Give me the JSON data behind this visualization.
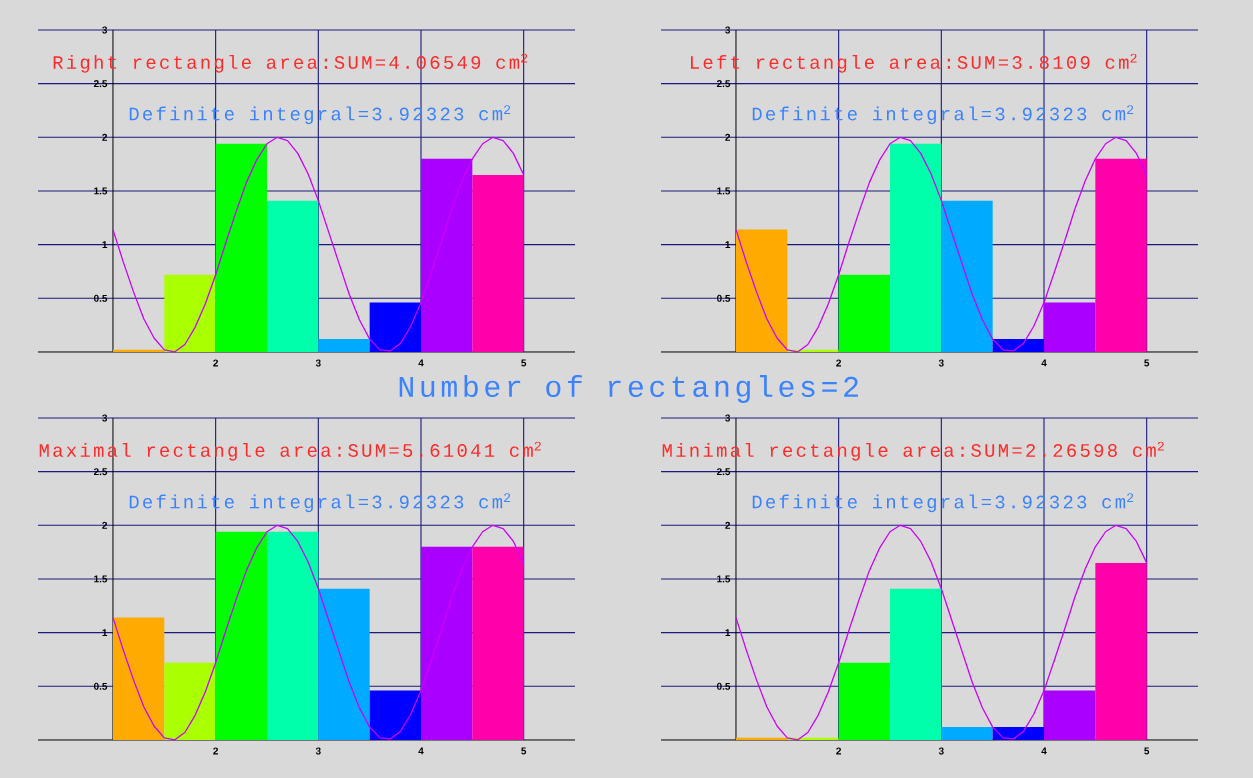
{
  "chart_data": [
    {
      "type": "bar",
      "title": "Right rectangle area:SUM=4.06549 cm$^{2}$",
      "subtitle": "Definite integral=3.92323 cm$^{2}$",
      "annotations": [
        "Number of rectangles=2"
      ],
      "x": [
        1.25,
        1.75,
        2.25,
        2.75,
        3.25,
        3.75,
        4.25,
        4.75
      ],
      "series": [
        {
          "values": [
            0.02,
            0.72,
            1.94,
            1.41,
            0.12,
            0.46,
            1.8,
            1.65
          ],
          "colors": [
            "#ffaa00",
            "#aaff00",
            "#00ff00",
            "#00ffaa",
            "#00aaff",
            "#0000ff",
            "#aa00ff",
            "#ff00aa"
          ]
        },
        {
          "type": "line",
          "color": "#cc00ff",
          "x": [
            1.0,
            1.1,
            1.2,
            1.3,
            1.4,
            1.5,
            1.6,
            1.7,
            1.8,
            1.9,
            2.0,
            2.1,
            2.2,
            2.3,
            2.4,
            2.5,
            2.6,
            2.7,
            2.8,
            2.9,
            3.0,
            3.1,
            3.2,
            3.3,
            3.4,
            3.5,
            3.6,
            3.7,
            3.8,
            3.9,
            4.0,
            4.1,
            4.2,
            4.3,
            4.4,
            4.5,
            4.6,
            4.7,
            4.8,
            4.9,
            5.0
          ],
          "values": [
            1.14,
            0.84,
            0.56,
            0.31,
            0.13,
            0.02,
            0.0,
            0.07,
            0.23,
            0.45,
            0.72,
            1.02,
            1.31,
            1.58,
            1.79,
            1.94,
            2.0,
            1.97,
            1.85,
            1.66,
            1.41,
            1.12,
            0.83,
            0.54,
            0.3,
            0.12,
            0.02,
            0.01,
            0.08,
            0.24,
            0.46,
            0.74,
            1.03,
            1.33,
            1.59,
            1.8,
            1.94,
            2.0,
            1.97,
            1.85,
            1.65
          ]
        }
      ],
      "xlim": [
        0.27,
        5.5
      ],
      "ylim": [
        0,
        3
      ],
      "xticks": [
        2,
        3,
        4,
        5
      ],
      "yticks": [
        0.5,
        1,
        1.5,
        2,
        2.5,
        3
      ],
      "grid": true
    },
    {
      "type": "bar",
      "title": "Left rectangle area:SUM=3.8109 cm$^{2}$",
      "subtitle": "Definite integral=3.92323 cm$^{2}$",
      "x": [
        1.25,
        1.75,
        2.25,
        2.75,
        3.25,
        3.75,
        4.25,
        4.75
      ],
      "series": [
        {
          "values": [
            1.14,
            0.02,
            0.72,
            1.94,
            1.41,
            0.12,
            0.46,
            1.8
          ],
          "colors": [
            "#ffaa00",
            "#aaff00",
            "#00ff00",
            "#00ffaa",
            "#00aaff",
            "#0000ff",
            "#aa00ff",
            "#ff00aa"
          ]
        },
        {
          "type": "line",
          "color": "#cc00ff",
          "x": [
            1.0,
            1.1,
            1.2,
            1.3,
            1.4,
            1.5,
            1.6,
            1.7,
            1.8,
            1.9,
            2.0,
            2.1,
            2.2,
            2.3,
            2.4,
            2.5,
            2.6,
            2.7,
            2.8,
            2.9,
            3.0,
            3.1,
            3.2,
            3.3,
            3.4,
            3.5,
            3.6,
            3.7,
            3.8,
            3.9,
            4.0,
            4.1,
            4.2,
            4.3,
            4.4,
            4.5,
            4.6,
            4.7,
            4.8,
            4.9,
            5.0
          ],
          "values": [
            1.14,
            0.84,
            0.56,
            0.31,
            0.13,
            0.02,
            0.0,
            0.07,
            0.23,
            0.45,
            0.72,
            1.02,
            1.31,
            1.58,
            1.79,
            1.94,
            2.0,
            1.97,
            1.85,
            1.66,
            1.41,
            1.12,
            0.83,
            0.54,
            0.3,
            0.12,
            0.02,
            0.01,
            0.08,
            0.24,
            0.46,
            0.74,
            1.03,
            1.33,
            1.59,
            1.8,
            1.94,
            2.0,
            1.97,
            1.85,
            1.65
          ]
        }
      ],
      "xlim": [
        0.27,
        5.5
      ],
      "ylim": [
        0,
        3
      ],
      "xticks": [
        2,
        3,
        4,
        5
      ],
      "yticks": [
        0.5,
        1,
        1.5,
        2,
        2.5,
        3
      ],
      "grid": true
    },
    {
      "type": "bar",
      "title": "Maximal rectangle area:SUM=5.61041 cm$^{2}$",
      "subtitle": "Definite integral=3.92323 cm$^{2}$",
      "x": [
        1.25,
        1.75,
        2.25,
        2.75,
        3.25,
        3.75,
        4.25,
        4.75
      ],
      "series": [
        {
          "values": [
            1.14,
            0.72,
            1.94,
            1.94,
            1.41,
            0.46,
            1.8,
            1.8
          ],
          "colors": [
            "#ffaa00",
            "#aaff00",
            "#00ff00",
            "#00ffaa",
            "#00aaff",
            "#0000ff",
            "#aa00ff",
            "#ff00aa"
          ]
        },
        {
          "type": "line",
          "color": "#cc00ff",
          "x": [
            1.0,
            1.1,
            1.2,
            1.3,
            1.4,
            1.5,
            1.6,
            1.7,
            1.8,
            1.9,
            2.0,
            2.1,
            2.2,
            2.3,
            2.4,
            2.5,
            2.6,
            2.7,
            2.8,
            2.9,
            3.0,
            3.1,
            3.2,
            3.3,
            3.4,
            3.5,
            3.6,
            3.7,
            3.8,
            3.9,
            4.0,
            4.1,
            4.2,
            4.3,
            4.4,
            4.5,
            4.6,
            4.7,
            4.8,
            4.9,
            5.0
          ],
          "values": [
            1.14,
            0.84,
            0.56,
            0.31,
            0.13,
            0.02,
            0.0,
            0.07,
            0.23,
            0.45,
            0.72,
            1.02,
            1.31,
            1.58,
            1.79,
            1.94,
            2.0,
            1.97,
            1.85,
            1.66,
            1.41,
            1.12,
            0.83,
            0.54,
            0.3,
            0.12,
            0.02,
            0.01,
            0.08,
            0.24,
            0.46,
            0.74,
            1.03,
            1.33,
            1.59,
            1.8,
            1.94,
            2.0,
            1.97,
            1.85,
            1.65
          ]
        }
      ],
      "xlim": [
        0.27,
        5.5
      ],
      "ylim": [
        0,
        3
      ],
      "xticks": [
        2,
        3,
        4,
        5
      ],
      "yticks": [
        0.5,
        1,
        1.5,
        2,
        2.5,
        3
      ],
      "grid": true
    },
    {
      "type": "bar",
      "title": "Minimal rectangle area:SUM=2.26598 cm$^{2}$",
      "subtitle": "Definite integral=3.92323 cm$^{2}$",
      "x": [
        1.25,
        1.75,
        2.25,
        2.75,
        3.25,
        3.75,
        4.25,
        4.75
      ],
      "series": [
        {
          "values": [
            0.02,
            0.02,
            0.72,
            1.41,
            0.12,
            0.12,
            0.46,
            1.65
          ],
          "colors": [
            "#ffaa00",
            "#aaff00",
            "#00ff00",
            "#00ffaa",
            "#00aaff",
            "#0000ff",
            "#aa00ff",
            "#ff00aa"
          ]
        },
        {
          "type": "line",
          "color": "#cc00ff",
          "x": [
            1.0,
            1.1,
            1.2,
            1.3,
            1.4,
            1.5,
            1.6,
            1.7,
            1.8,
            1.9,
            2.0,
            2.1,
            2.2,
            2.3,
            2.4,
            2.5,
            2.6,
            2.7,
            2.8,
            2.9,
            3.0,
            3.1,
            3.2,
            3.3,
            3.4,
            3.5,
            3.6,
            3.7,
            3.8,
            3.9,
            4.0,
            4.1,
            4.2,
            4.3,
            4.4,
            4.5,
            4.6,
            4.7,
            4.8,
            4.9,
            5.0
          ],
          "values": [
            1.14,
            0.84,
            0.56,
            0.31,
            0.13,
            0.02,
            0.0,
            0.07,
            0.23,
            0.45,
            0.72,
            1.02,
            1.31,
            1.58,
            1.79,
            1.94,
            2.0,
            1.97,
            1.85,
            1.66,
            1.41,
            1.12,
            0.83,
            0.54,
            0.3,
            0.12,
            0.02,
            0.01,
            0.08,
            0.24,
            0.46,
            0.74,
            1.03,
            1.33,
            1.59,
            1.8,
            1.94,
            2.0,
            1.97,
            1.85,
            1.65
          ]
        }
      ],
      "xlim": [
        0.27,
        5.5
      ],
      "ylim": [
        0,
        3
      ],
      "xticks": [
        2,
        3,
        4,
        5
      ],
      "yticks": [
        0.5,
        1,
        1.5,
        2,
        2.5,
        3
      ],
      "grid": true
    }
  ]
}
